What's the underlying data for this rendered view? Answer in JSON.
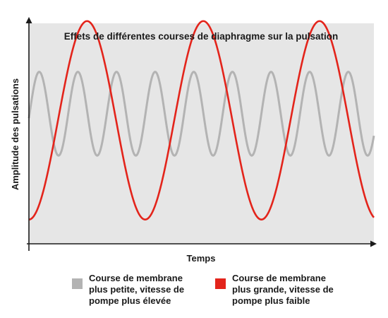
{
  "chart_data": {
    "type": "line",
    "title": "Effets de différentes courses de diaphragme sur la pulsation",
    "xlabel": "Temps",
    "ylabel": "Amplitude des pulsations",
    "xlim": [
      0,
      100
    ],
    "ylim": [
      0,
      100
    ],
    "grid": false,
    "legend_position": "bottom",
    "background_color": "#e6e6e6",
    "axis_color": "#1a1a1a",
    "series": [
      {
        "name": "Course de membrane plus petite, vitesse de pompe plus élevée",
        "label_lines": [
          "Course de membrane",
          "plus petite, vitesse de",
          "pompe plus élevée"
        ],
        "color": "#b3b3b3",
        "amplitude": 19,
        "center": 59,
        "period": 11.2,
        "phase_start_value": 57,
        "x_range": [
          0,
          100
        ]
      },
      {
        "name": "Course de membrane plus grande, vitesse de pompe plus faible",
        "label_lines": [
          "Course de membrane",
          "plus grande, vitesse de",
          "pompe plus faible"
        ],
        "color": "#e3241b",
        "amplitude": 45,
        "center": 56,
        "period": 33.7,
        "phase_start_value": 11,
        "x_range": [
          0,
          100
        ]
      }
    ]
  }
}
